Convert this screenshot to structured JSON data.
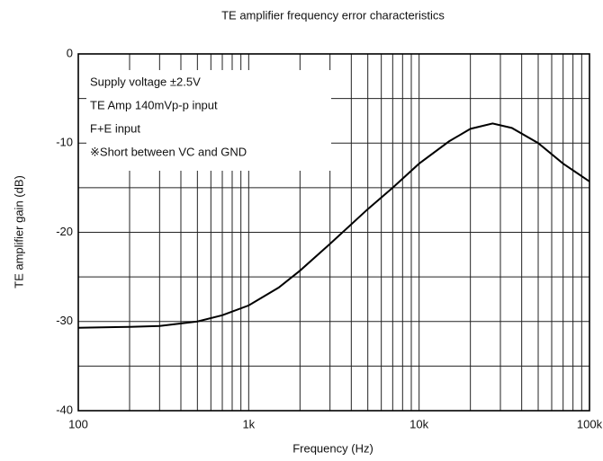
{
  "chart_data": {
    "type": "line",
    "title": "TE amplifier frequency error characteristics",
    "x_label": "Frequency (Hz)",
    "y_label": "TE amplifier gain (dB)",
    "xscale": "log",
    "xlim": [
      100,
      100000
    ],
    "ylim": [
      -40,
      0
    ],
    "xticks": [
      100,
      {
        "value": 1000,
        "label": "1k"
      },
      {
        "value": 10000,
        "label": "10k"
      },
      {
        "value": 100000,
        "label": "100k"
      }
    ],
    "yticks": [
      -40,
      -30,
      -20,
      -10,
      0
    ],
    "xminorticks": [
      200,
      300,
      400,
      500,
      600,
      700,
      800,
      900,
      2000,
      3000,
      4000,
      5000,
      6000,
      7000,
      8000,
      9000,
      20000,
      30000,
      40000,
      50000,
      60000,
      70000,
      80000,
      90000
    ],
    "yminorticks": [
      -35,
      -25,
      -15,
      -5
    ],
    "grid": true,
    "annotations": [
      "Supply voltage ±2.5V",
      "TE Amp 140mVp-p input",
      "F+E input",
      "※Short between VC and GND"
    ],
    "series": [
      {
        "color": "#000000",
        "x": [
          100,
          200,
          300,
          500,
          700,
          1000,
          1500,
          2000,
          3000,
          5000,
          7000,
          10000,
          15000,
          20000,
          27000,
          35000,
          50000,
          70000,
          100000
        ],
        "values": [
          -30.7,
          -30.6,
          -30.5,
          -30.0,
          -29.3,
          -28.2,
          -26.2,
          -24.3,
          -21.3,
          -17.4,
          -15.0,
          -12.3,
          -9.8,
          -8.4,
          -7.8,
          -8.3,
          -10.0,
          -12.3,
          -14.3
        ]
      }
    ]
  }
}
